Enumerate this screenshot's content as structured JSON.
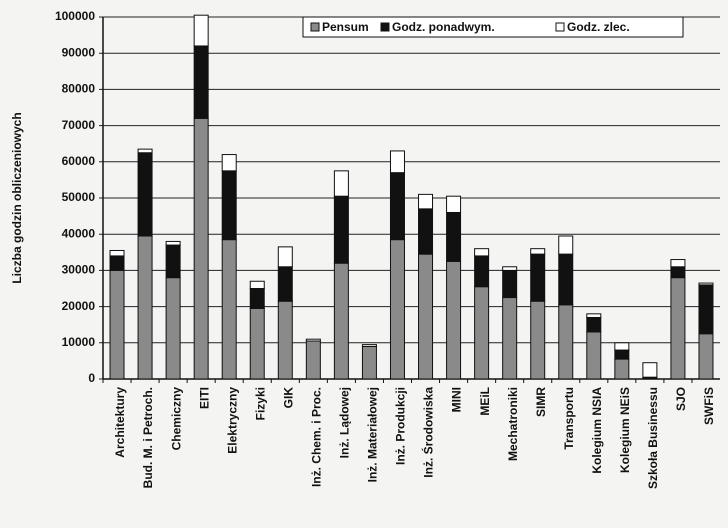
{
  "chart_data": {
    "type": "stacked_bar",
    "y_label": "Liczba godzin obliczeniowych",
    "categories": [
      "Architektury",
      "Bud. M. i Petroch.",
      "Chemiczny",
      "EITI",
      "Elektryczny",
      "Fizyki",
      "GIK",
      "Inż. Chem. i Proc.",
      "Inż. Lądowej",
      "Inż. Materiałowej",
      "Inż. Produkcji",
      "Inż. Środowiska",
      "MINI",
      "MEiL",
      "Mechatroniki",
      "SIMR",
      "Transportu",
      "Kolegium NSIA",
      "Kolegium NEiS",
      "Szkoła Businessu",
      "SJO",
      "SWFiS"
    ],
    "series": [
      {
        "name": "Pensum",
        "color": "#8a8a8a",
        "values": [
          30000,
          39500,
          28000,
          72000,
          38500,
          19500,
          21500,
          10500,
          32000,
          9000,
          38500,
          34500,
          32500,
          25500,
          22500,
          21500,
          20500,
          13000,
          5500,
          0,
          28000,
          12500
        ]
      },
      {
        "name": "Godz. ponadwym.",
        "color": "#111111",
        "values": [
          4000,
          23000,
          9000,
          20000,
          19000,
          5500,
          9500,
          0,
          18500,
          0,
          18500,
          12500,
          13500,
          8500,
          7500,
          13000,
          14000,
          4000,
          2500,
          500,
          3000,
          13500
        ]
      },
      {
        "name": "Godz. zlec.",
        "color": "#ffffff",
        "values": [
          1500,
          1000,
          1000,
          8500,
          4500,
          2000,
          5500,
          500,
          7000,
          500,
          6000,
          4000,
          4500,
          2000,
          1000,
          1500,
          5000,
          1000,
          2000,
          4000,
          2000,
          500
        ]
      }
    ],
    "ylim": [
      0,
      100000
    ],
    "yticks": [
      0,
      10000,
      20000,
      30000,
      40000,
      50000,
      60000,
      70000,
      80000,
      90000,
      100000
    ],
    "grid": true,
    "legend": "upper right"
  }
}
